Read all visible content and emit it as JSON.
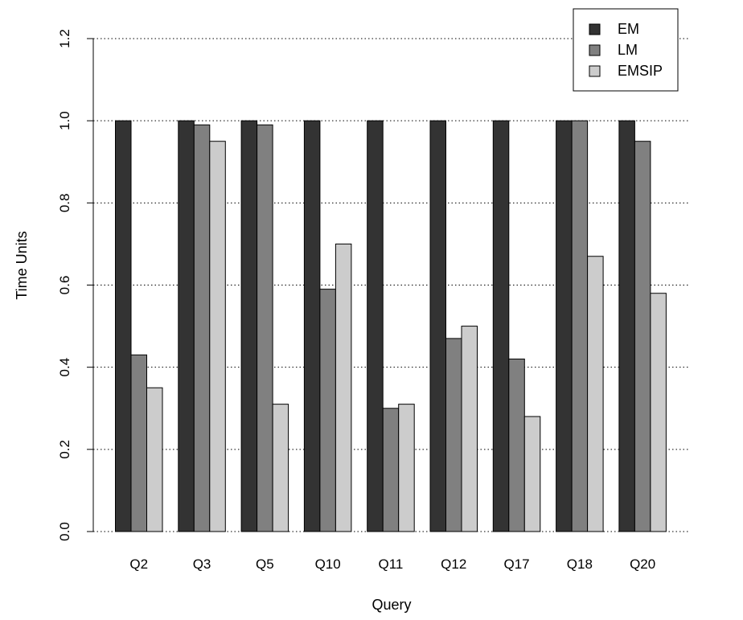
{
  "chart_data": {
    "type": "bar",
    "title": "",
    "xlabel": "Query",
    "ylabel": "Time Units",
    "ylim": [
      0,
      1.2
    ],
    "yticks": [
      "0.0",
      "0.2",
      "0.4",
      "0.6",
      "0.8",
      "1.0",
      "1.2"
    ],
    "grid": "horizontal dotted",
    "legend_position": "top-right",
    "categories": [
      "Q2",
      "Q3",
      "Q5",
      "Q10",
      "Q11",
      "Q12",
      "Q17",
      "Q18",
      "Q20"
    ],
    "series": [
      {
        "name": "EM",
        "color": "#333333",
        "values": [
          1.0,
          1.0,
          1.0,
          1.0,
          1.0,
          1.0,
          1.0,
          1.0,
          1.0
        ]
      },
      {
        "name": "LM",
        "color": "#808080",
        "values": [
          0.43,
          0.99,
          0.99,
          0.59,
          0.3,
          0.47,
          0.42,
          1.0,
          0.95
        ]
      },
      {
        "name": "EMSIP",
        "color": "#cccccc",
        "values": [
          0.35,
          0.95,
          0.31,
          0.7,
          0.31,
          0.5,
          0.28,
          0.67,
          0.58
        ]
      }
    ]
  }
}
